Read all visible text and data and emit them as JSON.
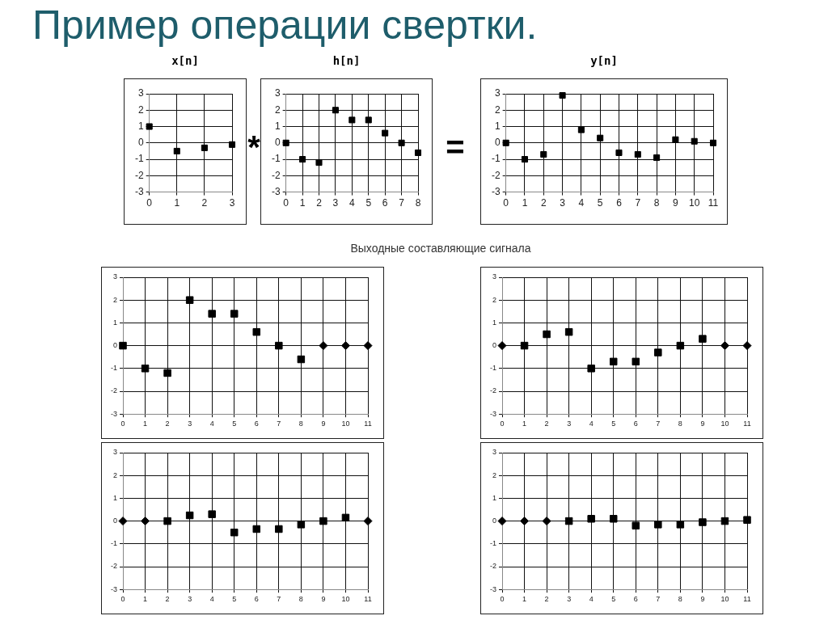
{
  "chart_data": [
    {
      "type": "other",
      "title": "Пример операции свертки."
    },
    {
      "type": "scatter",
      "title": "x[n]",
      "x": [
        0,
        1,
        2,
        3
      ],
      "values": [
        1,
        -0.5,
        -0.3,
        -0.1
      ],
      "color": "#000000",
      "marker": "square",
      "xlim": [
        0,
        3
      ],
      "xticks": [
        0,
        1,
        2,
        3
      ],
      "ylim": [
        -3,
        3
      ],
      "yticks": [
        -3,
        -2,
        -1,
        0,
        1,
        2,
        3
      ],
      "grid": true,
      "annotations": [
        "*"
      ]
    },
    {
      "type": "scatter",
      "title": "h[n]",
      "x": [
        0,
        1,
        2,
        3,
        4,
        5,
        6,
        7,
        8
      ],
      "values": [
        0,
        -1,
        -1.2,
        2,
        1.4,
        1.4,
        0.6,
        0,
        -0.6
      ],
      "color": "#000000",
      "marker": "square",
      "xlim": [
        0,
        8
      ],
      "xticks": [
        0,
        1,
        2,
        3,
        4,
        5,
        6,
        7,
        8
      ],
      "ylim": [
        -3,
        3
      ],
      "yticks": [
        -3,
        -2,
        -1,
        0,
        1,
        2,
        3
      ],
      "grid": true,
      "annotations": [
        "="
      ]
    },
    {
      "type": "scatter",
      "title": "y[n]",
      "x": [
        0,
        1,
        2,
        3,
        4,
        5,
        6,
        7,
        8,
        9,
        10,
        11
      ],
      "values": [
        0,
        -1,
        -0.7,
        2.9,
        0.8,
        0.3,
        -0.6,
        -0.7,
        -0.9,
        0.2,
        0.1,
        0
      ],
      "color": "#000000",
      "marker": "square",
      "xlim": [
        0,
        11
      ],
      "xticks": [
        0,
        1,
        2,
        3,
        4,
        5,
        6,
        7,
        8,
        9,
        10,
        11
      ],
      "ylim": [
        -3,
        3
      ],
      "yticks": [
        -3,
        -2,
        -1,
        0,
        1,
        2,
        3
      ],
      "grid": true
    },
    {
      "type": "other",
      "title": "Выходные составляющие сигнала"
    },
    {
      "type": "scatter",
      "series": [
        {
          "color": "#000000",
          "marker": "square",
          "x": [
            0,
            1,
            2,
            3,
            4,
            5,
            6,
            7,
            8
          ],
          "values": [
            0,
            -1,
            -1.2,
            2,
            1.4,
            1.4,
            0.6,
            0,
            -0.6
          ]
        },
        {
          "color": "#000000",
          "marker": "diamond",
          "x": [
            9,
            10,
            11
          ],
          "values": [
            0,
            0,
            0
          ]
        }
      ],
      "xlim": [
        0,
        11
      ],
      "xticks": [
        0,
        1,
        2,
        3,
        4,
        5,
        6,
        7,
        8,
        9,
        10,
        11
      ],
      "ylim": [
        -3,
        3
      ],
      "yticks": [
        -3,
        -2,
        -1,
        0,
        1,
        2,
        3
      ],
      "grid": true
    },
    {
      "type": "scatter",
      "series": [
        {
          "color": "#000000",
          "marker": "square",
          "x": [
            1,
            2,
            3,
            4,
            5,
            6,
            7,
            8,
            9
          ],
          "values": [
            0,
            0.5,
            0.6,
            -1,
            -0.7,
            -0.7,
            -0.3,
            0,
            0.3
          ]
        },
        {
          "color": "#000000",
          "marker": "diamond",
          "x": [
            0,
            10,
            11
          ],
          "values": [
            0,
            0,
            0
          ]
        }
      ],
      "xlim": [
        0,
        11
      ],
      "xticks": [
        0,
        1,
        2,
        3,
        4,
        5,
        6,
        7,
        8,
        9,
        10,
        11
      ],
      "ylim": [
        -3,
        3
      ],
      "yticks": [
        -3,
        -2,
        -1,
        0,
        1,
        2,
        3
      ],
      "grid": true
    },
    {
      "type": "scatter",
      "series": [
        {
          "color": "#000000",
          "marker": "square",
          "x": [
            2,
            3,
            4,
            5,
            6,
            7,
            8,
            9,
            10
          ],
          "values": [
            0,
            0.25,
            0.3,
            -0.5,
            -0.35,
            -0.35,
            -0.15,
            0,
            0.15
          ]
        },
        {
          "color": "#000000",
          "marker": "diamond",
          "x": [
            0,
            1,
            11
          ],
          "values": [
            0,
            0,
            0
          ]
        }
      ],
      "xlim": [
        0,
        11
      ],
      "xticks": [
        0,
        1,
        2,
        3,
        4,
        5,
        6,
        7,
        8,
        9,
        10,
        11
      ],
      "ylim": [
        -3,
        3
      ],
      "yticks": [
        -3,
        -2,
        -1,
        0,
        1,
        2,
        3
      ],
      "grid": true
    },
    {
      "type": "scatter",
      "series": [
        {
          "color": "#000000",
          "marker": "square",
          "x": [
            3,
            4,
            5,
            6,
            7,
            8,
            9,
            10,
            11
          ],
          "values": [
            0,
            0.1,
            0.1,
            -0.2,
            -0.15,
            -0.15,
            -0.05,
            0,
            0.05
          ]
        },
        {
          "color": "#000000",
          "marker": "diamond",
          "x": [
            0,
            1,
            2
          ],
          "values": [
            0,
            0,
            0
          ]
        }
      ],
      "xlim": [
        0,
        11
      ],
      "xticks": [
        0,
        1,
        2,
        3,
        4,
        5,
        6,
        7,
        8,
        9,
        10,
        11
      ],
      "ylim": [
        -3,
        3
      ],
      "yticks": [
        -3,
        -2,
        -1,
        0,
        1,
        2,
        3
      ],
      "grid": true
    }
  ]
}
